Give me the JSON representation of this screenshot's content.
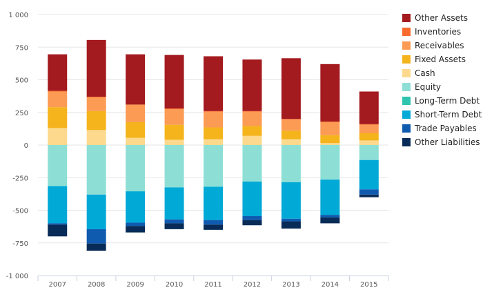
{
  "chart_data": {
    "type": "bar",
    "stacked": true,
    "categories": [
      "2007",
      "2008",
      "2009",
      "2010",
      "2011",
      "2012",
      "2013",
      "2014",
      "2015"
    ],
    "ylim": [
      -1000,
      1000
    ],
    "yticks": [
      1000,
      750,
      500,
      250,
      0,
      -250,
      -500,
      -750,
      -1000
    ],
    "ytick_labels": [
      "1 000",
      "750",
      "500",
      "250",
      "0",
      "-250",
      "-500",
      "-750",
      "-1 000"
    ],
    "grid": true,
    "legend_position": "right",
    "series": [
      {
        "name": "Cash",
        "color": "#fdd98d",
        "values": [
          130,
          115,
          55,
          40,
          45,
          70,
          45,
          15,
          35
        ]
      },
      {
        "name": "Fixed Assets",
        "color": "#f5b41c",
        "values": [
          160,
          145,
          120,
          115,
          90,
          75,
          65,
          60,
          55
        ]
      },
      {
        "name": "Receivables",
        "color": "#fb9b54",
        "values": [
          120,
          105,
          135,
          120,
          120,
          110,
          85,
          100,
          65
        ]
      },
      {
        "name": "Inventories",
        "color": "#f96b2c",
        "values": [
          5,
          5,
          0,
          5,
          5,
          5,
          5,
          5,
          5
        ]
      },
      {
        "name": "Other Assets",
        "color": "#a31a1f",
        "values": [
          280,
          435,
          385,
          410,
          420,
          395,
          465,
          440,
          250
        ]
      },
      {
        "name": "Equity",
        "color": "#8ddfd6",
        "values": [
          -315,
          -380,
          -355,
          -325,
          -320,
          -280,
          -285,
          -265,
          -115
        ]
      },
      {
        "name": "Long-Term Debt",
        "color": "#2ec4b0",
        "values": [
          0,
          0,
          0,
          0,
          0,
          0,
          0,
          0,
          0
        ]
      },
      {
        "name": "Short-Term Debt",
        "color": "#00a9d6",
        "values": [
          -285,
          -265,
          -240,
          -245,
          -255,
          -265,
          -280,
          -270,
          -225
        ]
      },
      {
        "name": "Trade Payables",
        "color": "#0f5bb0",
        "values": [
          -10,
          -110,
          -25,
          -30,
          -35,
          -30,
          -20,
          -20,
          -40
        ]
      },
      {
        "name": "Other Liabilities",
        "color": "#082c57",
        "values": [
          -90,
          -55,
          -50,
          -45,
          -40,
          -40,
          -55,
          -45,
          -20
        ]
      }
    ],
    "legend_order": [
      "Other Assets",
      "Inventories",
      "Receivables",
      "Fixed Assets",
      "Cash",
      "Equity",
      "Long-Term Debt",
      "Short-Term Debt",
      "Trade Payables",
      "Other Liabilities"
    ]
  }
}
